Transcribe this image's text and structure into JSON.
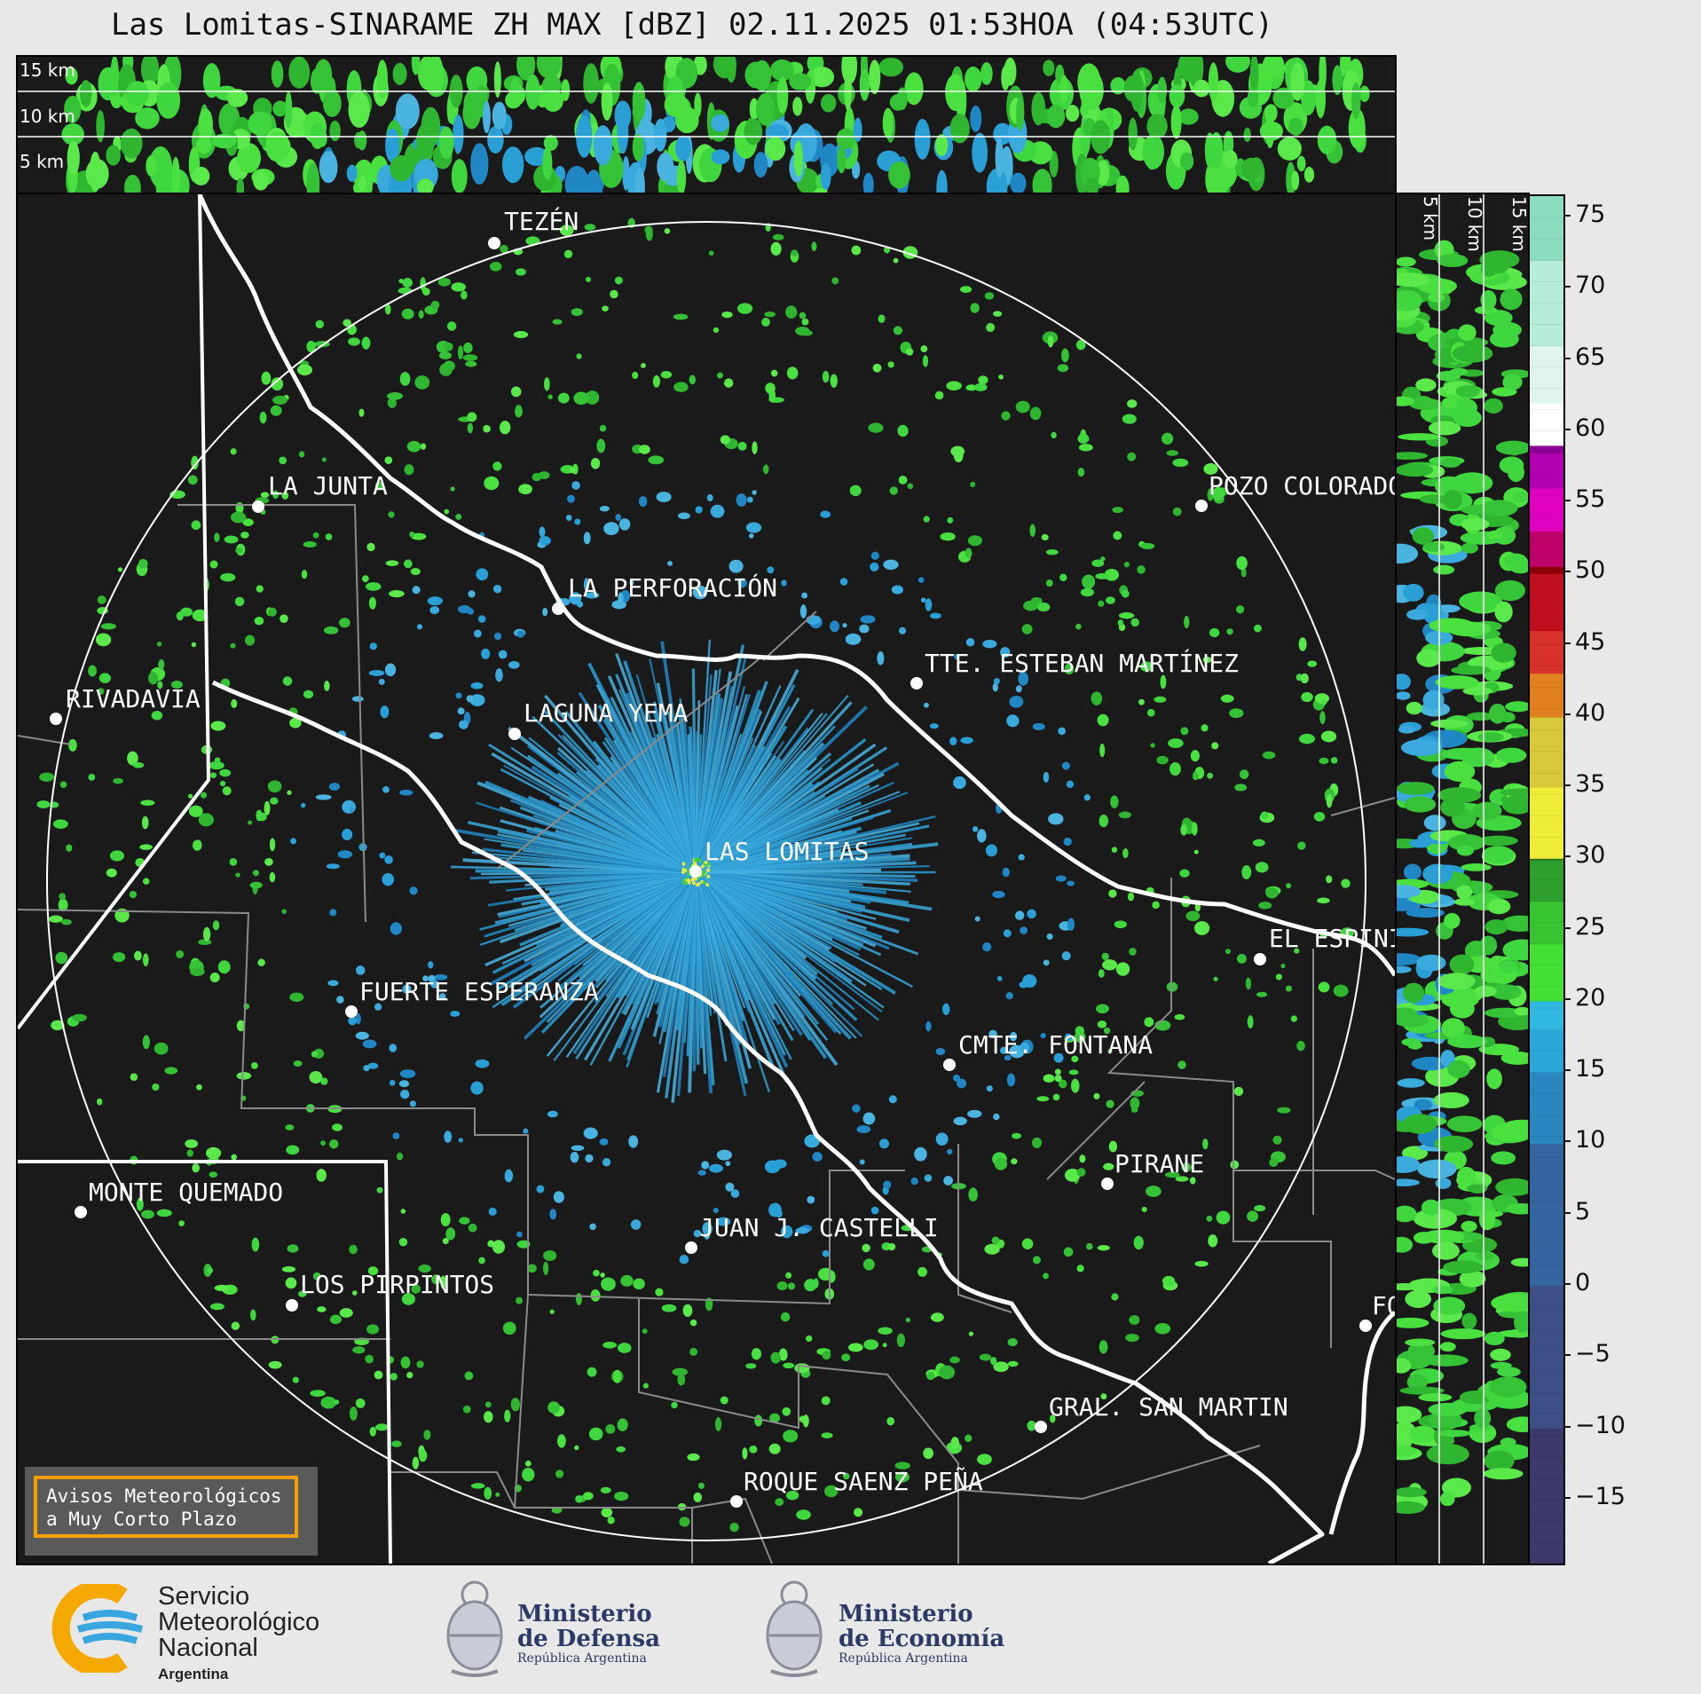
{
  "title": "Las Lomitas-SINARAME ZH MAX [dBZ] 02.11.2025 01:53HOA (04:53UTC)",
  "top_profile": {
    "labels": [
      "15 km",
      "10 km",
      "5 km"
    ]
  },
  "side_profile": {
    "labels": [
      "5 km",
      "10 km",
      "15 km"
    ]
  },
  "cities": [
    {
      "name": "TEZÉN"
    },
    {
      "name": "LA JUNTA"
    },
    {
      "name": "POZO COLORADO"
    },
    {
      "name": "LA PERFORACIÓN"
    },
    {
      "name": "RIVADAVIA"
    },
    {
      "name": "TTE. ESTEBAN MARTÍNEZ"
    },
    {
      "name": "LAGUNA YEMA"
    },
    {
      "name": "LAS LOMITAS"
    },
    {
      "name": "EL ESPINILLO"
    },
    {
      "name": "FUERTE ESPERANZA"
    },
    {
      "name": "CMTE. FONTANA"
    },
    {
      "name": "PIRANE"
    },
    {
      "name": "MONTE QUEMADO"
    },
    {
      "name": "JUAN J. CASTELLI"
    },
    {
      "name": "LOS PIRPINTOS"
    },
    {
      "name": "GRAL. SAN MARTIN"
    },
    {
      "name": "ROQUE SAENZ PEÑA"
    },
    {
      "name": "FORMOSA"
    }
  ],
  "notice": {
    "line1": "Avisos Meteorológicos",
    "line2": "a Muy Corto Plazo"
  },
  "colorbar": {
    "ticks": [
      "75",
      "70",
      "65",
      "60",
      "55",
      "50",
      "45",
      "40",
      "35",
      "30",
      "25",
      "20",
      "15",
      "10",
      "5",
      "0",
      "−5",
      "−10",
      "−15"
    ],
    "range": [
      -19.5,
      76.5
    ]
  },
  "logos": {
    "smn": {
      "line1": "Servicio",
      "line2": "Meteorológico",
      "line3": "Nacional",
      "line4": "Argentina"
    },
    "defensa": {
      "title1": "Ministerio",
      "title2": "de Defensa",
      "sub": "República Argentina"
    },
    "economia": {
      "title1": "Ministerio",
      "title2": "de Economía",
      "sub": "República Argentina"
    }
  }
}
